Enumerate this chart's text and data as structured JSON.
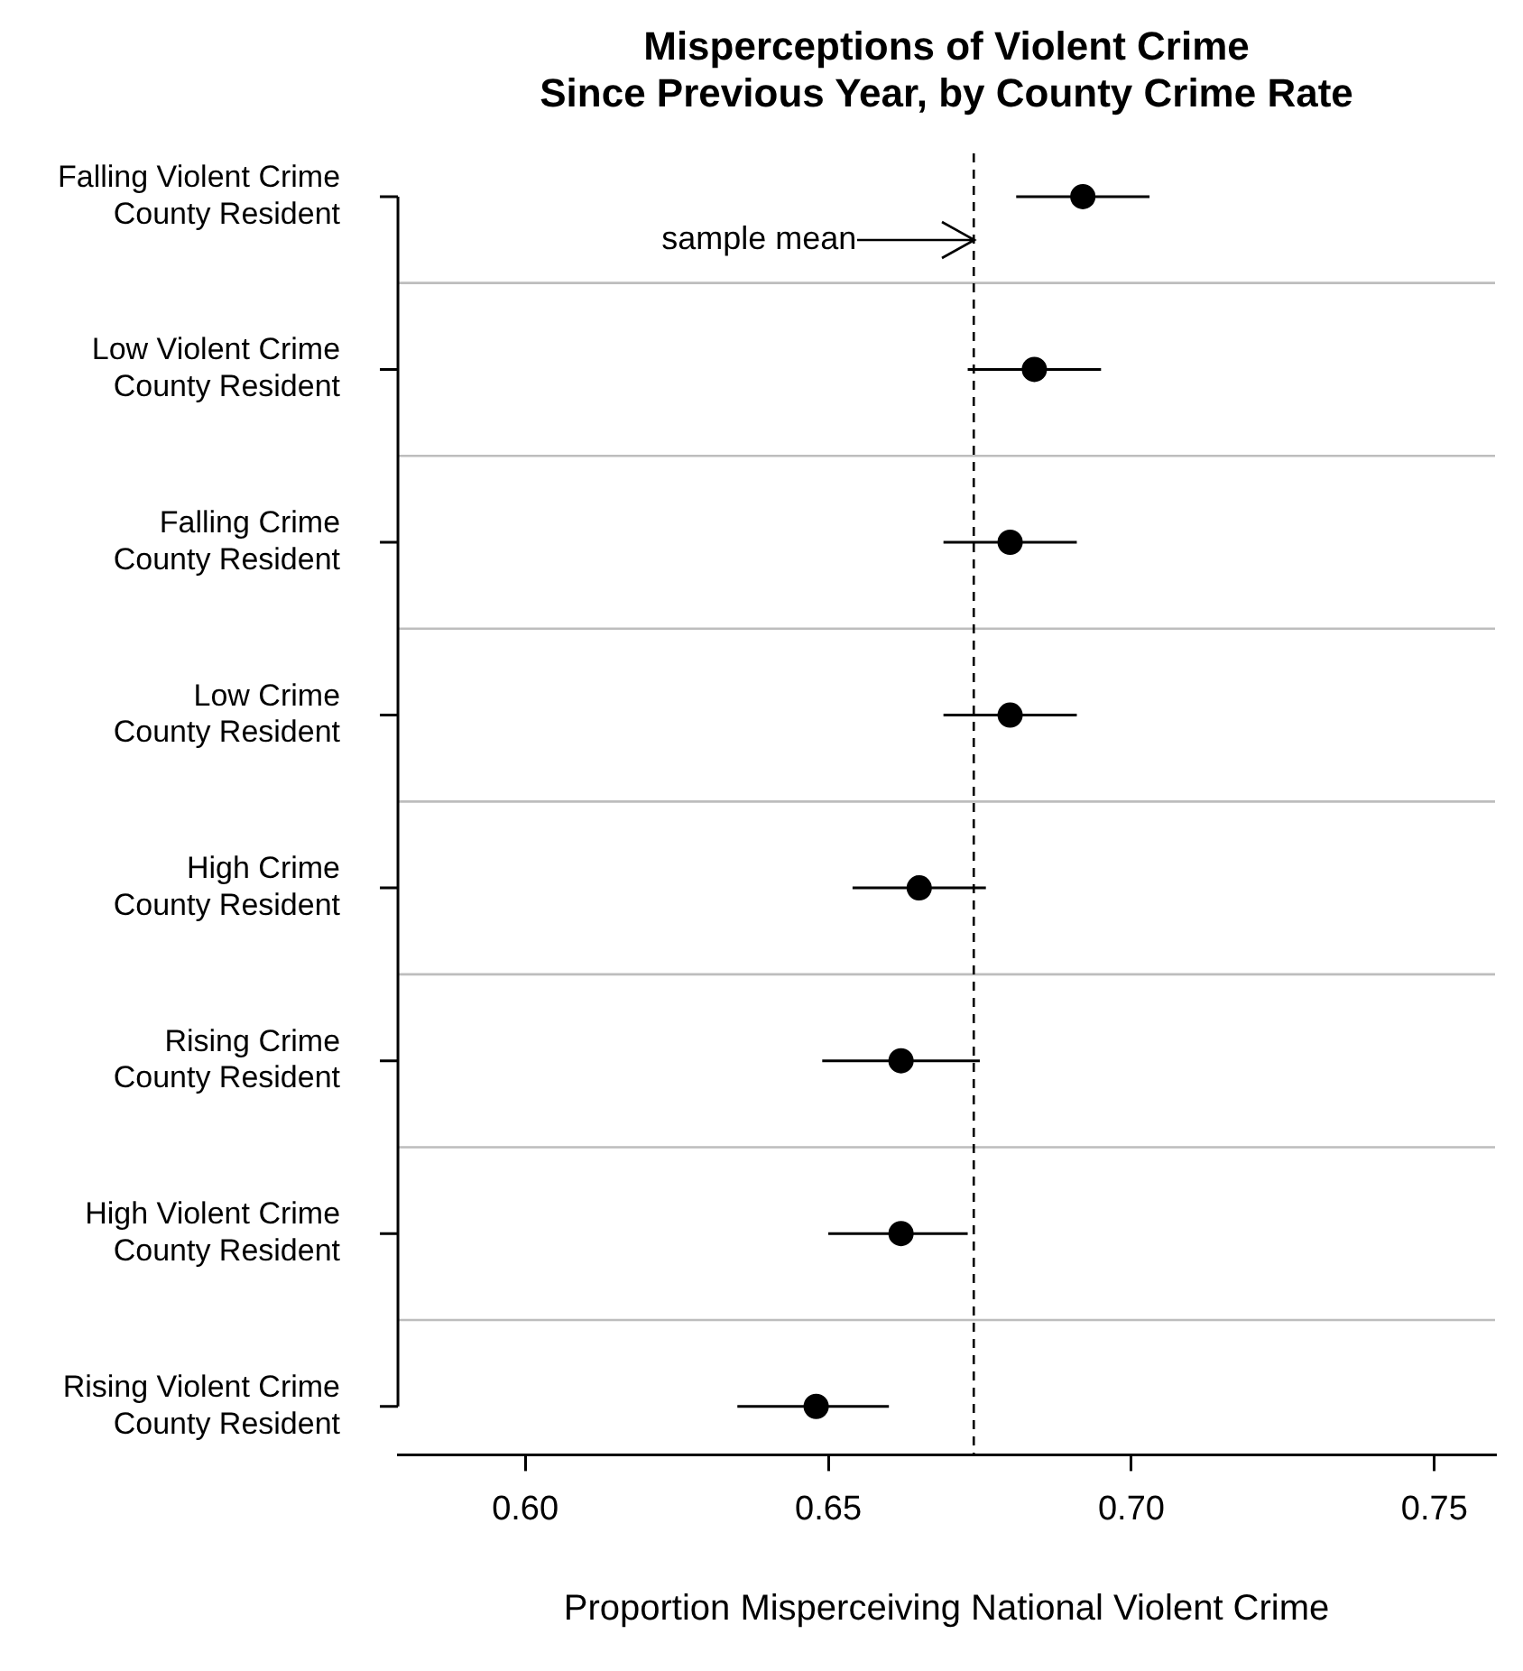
{
  "chart_data": {
    "type": "scatter",
    "orientation": "horizontal",
    "title": "Misperceptions of Violent Crime\nSince Previous Year, by County Crime Rate",
    "xlabel": "Proportion Misperceiving National Violent Crime",
    "categories": [
      "Falling Violent Crime\nCounty Resident",
      "Low Violent Crime\nCounty Resident",
      "Falling Crime\nCounty Resident",
      "Low Crime\nCounty Resident",
      "High Crime\nCounty Resident",
      "Rising Crime\nCounty Resident",
      "High Violent Crime\nCounty Resident",
      "Rising Violent Crime\nCounty Resident"
    ],
    "values": [
      0.692,
      0.684,
      0.68,
      0.68,
      0.665,
      0.662,
      0.662,
      0.648
    ],
    "errors": [
      [
        0.681,
        0.703
      ],
      [
        0.673,
        0.695
      ],
      [
        0.669,
        0.691
      ],
      [
        0.669,
        0.691
      ],
      [
        0.654,
        0.676
      ],
      [
        0.649,
        0.675
      ],
      [
        0.65,
        0.673
      ],
      [
        0.635,
        0.66
      ]
    ],
    "color": "#000000",
    "marker": "circle",
    "xlim": [
      0.579,
      0.76
    ],
    "xticks": [
      {
        "value": 0.6,
        "label": "0.60"
      },
      0.65,
      {
        "value": 0.7,
        "label": "0.70"
      },
      0.75
    ],
    "grid": "y",
    "ref_lines": [
      {
        "axis": "x",
        "value": 0.674,
        "label": "sample mean",
        "line_style": "dashed",
        "color": "#000000"
      }
    ]
  }
}
